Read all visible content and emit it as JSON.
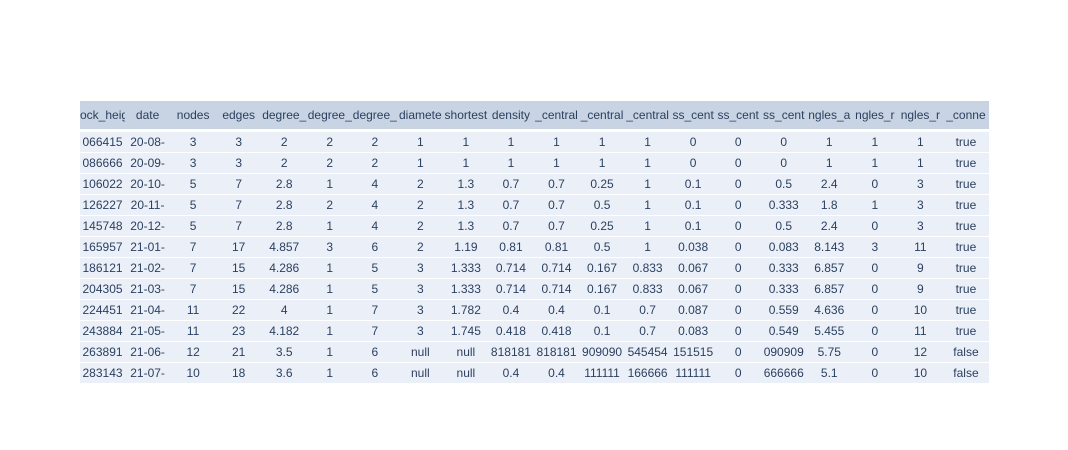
{
  "chart_data": {
    "type": "table",
    "columns": [
      "ock_heig",
      "date",
      "nodes",
      "edges",
      "degree_",
      "degree_",
      "degree_",
      "diamete",
      "shortest",
      "density",
      "_central",
      "_central",
      "_central",
      "ss_cent",
      "ss_cent",
      "ss_cent",
      "ngles_a",
      "ngles_r",
      "ngles_r",
      "_conne"
    ],
    "rows": [
      [
        "066415",
        "20-08-",
        "3",
        "3",
        "2",
        "2",
        "2",
        "1",
        "1",
        "1",
        "1",
        "1",
        "1",
        "0",
        "0",
        "0",
        "1",
        "1",
        "1",
        "true"
      ],
      [
        "086666",
        "20-09-",
        "3",
        "3",
        "2",
        "2",
        "2",
        "1",
        "1",
        "1",
        "1",
        "1",
        "1",
        "0",
        "0",
        "0",
        "1",
        "1",
        "1",
        "true"
      ],
      [
        "106022",
        "20-10-",
        "5",
        "7",
        "2.8",
        "1",
        "4",
        "2",
        "1.3",
        "0.7",
        "0.7",
        "0.25",
        "1",
        "0.1",
        "0",
        "0.5",
        "2.4",
        "0",
        "3",
        "true"
      ],
      [
        "126227",
        "20-11-",
        "5",
        "7",
        "2.8",
        "2",
        "4",
        "2",
        "1.3",
        "0.7",
        "0.7",
        "0.5",
        "1",
        "0.1",
        "0",
        "0.333",
        "1.8",
        "1",
        "3",
        "true"
      ],
      [
        "145748",
        "20-12-",
        "5",
        "7",
        "2.8",
        "1",
        "4",
        "2",
        "1.3",
        "0.7",
        "0.7",
        "0.25",
        "1",
        "0.1",
        "0",
        "0.5",
        "2.4",
        "0",
        "3",
        "true"
      ],
      [
        "165957",
        "21-01-",
        "7",
        "17",
        "4.857",
        "3",
        "6",
        "2",
        "1.19",
        "0.81",
        "0.81",
        "0.5",
        "1",
        "0.038",
        "0",
        "0.083",
        "8.143",
        "3",
        "11",
        "true"
      ],
      [
        "186121",
        "21-02-",
        "7",
        "15",
        "4.286",
        "1",
        "5",
        "3",
        "1.333",
        "0.714",
        "0.714",
        "0.167",
        "0.833",
        "0.067",
        "0",
        "0.333",
        "6.857",
        "0",
        "9",
        "true"
      ],
      [
        "204305",
        "21-03-",
        "7",
        "15",
        "4.286",
        "1",
        "5",
        "3",
        "1.333",
        "0.714",
        "0.714",
        "0.167",
        "0.833",
        "0.067",
        "0",
        "0.333",
        "6.857",
        "0",
        "9",
        "true"
      ],
      [
        "224451",
        "21-04-",
        "11",
        "22",
        "4",
        "1",
        "7",
        "3",
        "1.782",
        "0.4",
        "0.4",
        "0.1",
        "0.7",
        "0.087",
        "0",
        "0.559",
        "4.636",
        "0",
        "10",
        "true"
      ],
      [
        "243884",
        "21-05-",
        "11",
        "23",
        "4.182",
        "1",
        "7",
        "3",
        "1.745",
        "0.418",
        "0.418",
        "0.1",
        "0.7",
        "0.083",
        "0",
        "0.549",
        "5.455",
        "0",
        "11",
        "true"
      ],
      [
        "263891",
        "21-06-",
        "12",
        "21",
        "3.5",
        "1",
        "6",
        "null",
        "null",
        "818181",
        "818181",
        "909090",
        "545454",
        "151515",
        "0",
        "090909",
        "5.75",
        "0",
        "12",
        "false"
      ],
      [
        "283143",
        "21-07-",
        "10",
        "18",
        "3.6",
        "1",
        "6",
        "null",
        "null",
        "0.4",
        "0.4",
        "111111",
        "166666",
        "111111",
        "0",
        "666666",
        "5.1",
        "0",
        "10",
        "false"
      ]
    ]
  },
  "colors": {
    "header_fill": "#c8d4e3",
    "cell_fill": "#ebf0f8",
    "text": "#2a3f5f",
    "line": "#ffffff"
  }
}
